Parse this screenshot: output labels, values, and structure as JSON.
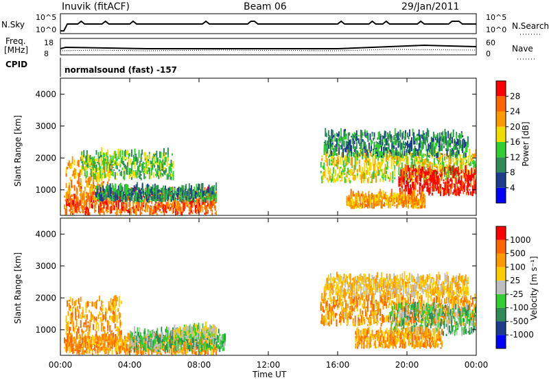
{
  "header": {
    "station": "Inuvik (fitACF)",
    "beam": "Beam 06",
    "date": "29/Jan/2011"
  },
  "panels": {
    "nsky_label": "N.Sky",
    "nsky_top": "10^5",
    "nsky_bottom": "10^0",
    "nsearch_top": "10^5",
    "nsearch_bottom": "10^0",
    "nsearch_label": "N.Search",
    "freq_label_1": "Freq.",
    "freq_label_2": "[MHz]",
    "freq_top": "18",
    "freq_bottom": "8",
    "nave_top": "60",
    "nave_bottom": "0",
    "nave_label": "Nave",
    "cpid_label": "CPID",
    "cpid_value": "normalsound (fast) -157"
  },
  "colors": {
    "power": [
      "#0000ff",
      "#1e3c8c",
      "#2e8b57",
      "#32cd32",
      "#f0dc00",
      "#ff9900",
      "#ff6600",
      "#ff0000"
    ],
    "velocity": [
      "#ff0000",
      "#ff6600",
      "#ff9900",
      "#ffcc00",
      "#bebebe",
      "#32cd32",
      "#2e8b57",
      "#1e3c8c",
      "#0000ff"
    ]
  },
  "chart_data": [
    {
      "type": "heatmap",
      "xlabel": "",
      "ylabel": "Slant Range [km]",
      "yticks": [
        "1000",
        "2000",
        "3000",
        "4000"
      ],
      "ylim": [
        200,
        4500
      ],
      "colorbar_label": "Power [dB]",
      "colorbar_ticks": [
        "4",
        "8",
        "12",
        "16",
        "20",
        "24",
        "28"
      ],
      "regions": [
        {
          "t0": 0.2,
          "t1": 9.0,
          "r0": 200,
          "r1": 900,
          "level": 6
        },
        {
          "t0": 0.3,
          "t1": 3.0,
          "r0": 600,
          "r1": 1900,
          "level": 5
        },
        {
          "t0": 1.2,
          "t1": 6.5,
          "r0": 1300,
          "r1": 2100,
          "level": 3
        },
        {
          "t0": 2.0,
          "t1": 9.0,
          "r0": 600,
          "r1": 1000,
          "level": 2
        },
        {
          "t0": 15.0,
          "t1": 24.0,
          "r0": 1200,
          "r1": 2100,
          "level": 4
        },
        {
          "t0": 19.5,
          "t1": 24.0,
          "r0": 800,
          "r1": 1600,
          "level": 7
        },
        {
          "t0": 16.5,
          "t1": 21.0,
          "r0": 400,
          "r1": 800,
          "level": 5
        },
        {
          "t0": 15.2,
          "t1": 23.5,
          "r0": 2000,
          "r1": 2700,
          "level": 2
        }
      ]
    },
    {
      "type": "heatmap",
      "xlabel": "Time UT",
      "ylabel": "Slant Range [km]",
      "xticks": [
        "00:00",
        "04:00",
        "08:00",
        "12:00",
        "16:00",
        "20:00",
        "00:00"
      ],
      "yticks": [
        "1000",
        "2000",
        "3000",
        "4000"
      ],
      "ylim": [
        200,
        4500
      ],
      "colorbar_label": "Velocity [m s⁻¹]",
      "colorbar_ticks": [
        "1000",
        "500",
        "100",
        "25",
        "-25",
        "-100",
        "-500",
        "-1000"
      ],
      "regions": [
        {
          "t0": 0.3,
          "t1": 3.5,
          "r0": 600,
          "r1": 1900,
          "level": 2
        },
        {
          "t0": 0.2,
          "t1": 9.0,
          "r0": 200,
          "r1": 700,
          "level": 2
        },
        {
          "t0": 4.0,
          "t1": 9.5,
          "r0": 300,
          "r1": 900,
          "level": 5
        },
        {
          "t0": 6.5,
          "t1": 9.0,
          "r0": 700,
          "r1": 1000,
          "level": 4
        },
        {
          "t0": 15.0,
          "t1": 24.0,
          "r0": 1100,
          "r1": 2000,
          "level": 2
        },
        {
          "t0": 19.0,
          "t1": 24.0,
          "r0": 800,
          "r1": 1700,
          "level": 5
        },
        {
          "t0": 17.0,
          "t1": 22.0,
          "r0": 400,
          "r1": 900,
          "level": 2
        },
        {
          "t0": 15.2,
          "t1": 23.5,
          "r0": 2000,
          "r1": 2600,
          "level": 3
        }
      ]
    }
  ]
}
